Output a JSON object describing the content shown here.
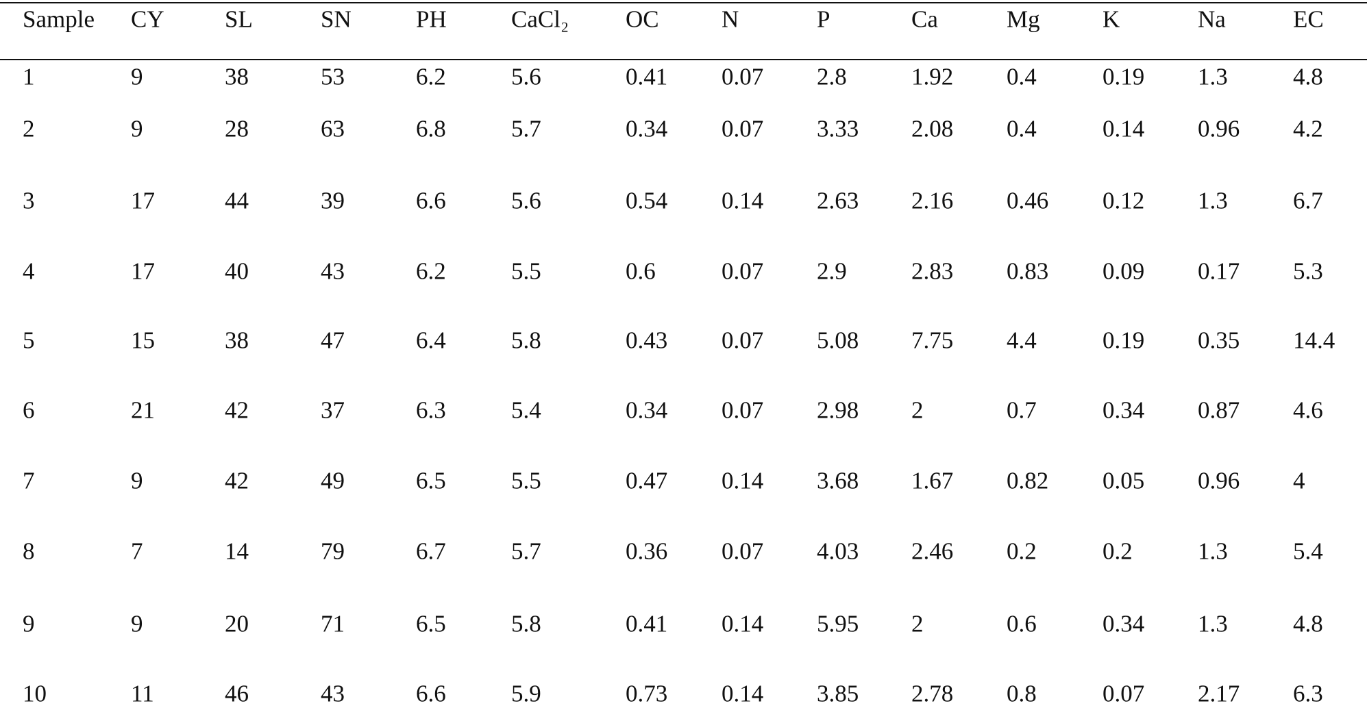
{
  "table": {
    "header": [
      "Sample",
      "CY",
      "SL",
      "SN",
      "PH",
      "CaCl₂",
      "OC",
      "N",
      "P",
      "Ca",
      "Mg",
      "K",
      "Na",
      "EC"
    ],
    "rows": [
      [
        "1",
        "9",
        "38",
        "53",
        "6.2",
        "5.6",
        "0.41",
        "0.07",
        "2.8",
        "1.92",
        "0.4",
        "0.19",
        "1.3",
        "4.8"
      ],
      [
        "2",
        "9",
        "28",
        "63",
        "6.8",
        "5.7",
        "0.34",
        "0.07",
        "3.33",
        "2.08",
        "0.4",
        "0.14",
        "0.96",
        "4.2"
      ],
      [
        "3",
        "17",
        "44",
        "39",
        "6.6",
        "5.6",
        "0.54",
        "0.14",
        "2.63",
        "2.16",
        "0.46",
        "0.12",
        "1.3",
        "6.7"
      ],
      [
        "4",
        "17",
        "40",
        "43",
        "6.2",
        "5.5",
        "0.6",
        "0.07",
        "2.9",
        "2.83",
        "0.83",
        "0.09",
        "0.17",
        "5.3"
      ],
      [
        "5",
        "15",
        "38",
        "47",
        "6.4",
        "5.8",
        "0.43",
        "0.07",
        "5.08",
        "7.75",
        "4.4",
        "0.19",
        "0.35",
        "14.4"
      ],
      [
        "6",
        "21",
        "42",
        "37",
        "6.3",
        "5.4",
        "0.34",
        "0.07",
        "2.98",
        "2",
        "0.7",
        "0.34",
        "0.87",
        "4.6"
      ],
      [
        "7",
        "9",
        "42",
        "49",
        "6.5",
        "5.5",
        "0.47",
        "0.14",
        "3.68",
        "1.67",
        "0.82",
        "0.05",
        "0.96",
        "4"
      ],
      [
        "8",
        "7",
        "14",
        "79",
        "6.7",
        "5.7",
        "0.36",
        "0.07",
        "4.03",
        "2.46",
        "0.2",
        "0.2",
        "1.3",
        "5.4"
      ],
      [
        "9",
        "9",
        "20",
        "71",
        "6.5",
        "5.8",
        "0.41",
        "0.14",
        "5.95",
        "2",
        "0.6",
        "0.34",
        "1.3",
        "4.8"
      ],
      [
        "10",
        "11",
        "46",
        "43",
        "6.6",
        "5.9",
        "0.73",
        "0.14",
        "3.85",
        "2.78",
        "0.8",
        "0.07",
        "2.17",
        "6.3"
      ]
    ]
  }
}
